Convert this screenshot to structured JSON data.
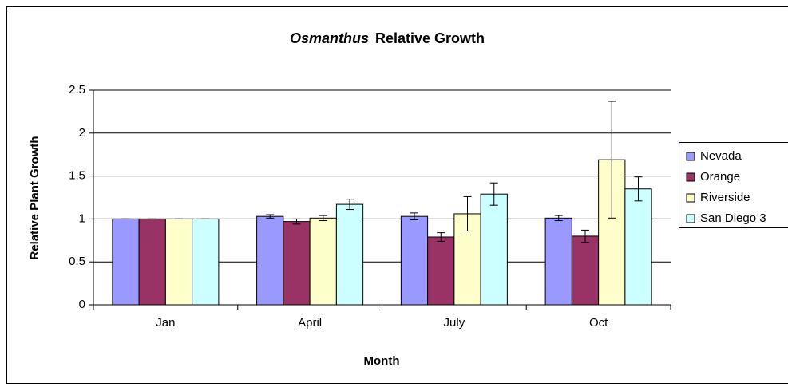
{
  "chart_data": {
    "type": "bar",
    "title_parts": [
      "Osmanthus",
      "Relative Growth"
    ],
    "x_label": "Month",
    "y_label": "Relative Plant Growth",
    "categories": [
      "Jan",
      "April",
      "July",
      "Oct"
    ],
    "series": [
      {
        "name": "Nevada",
        "color": "#9999ff",
        "values": [
          1,
          1.03,
          1.03,
          1.01
        ],
        "errors": [
          0,
          0.02,
          0.04,
          0.03
        ]
      },
      {
        "name": "Orange",
        "color": "#993366",
        "values": [
          1,
          0.97,
          0.79,
          0.8
        ],
        "errors": [
          0,
          0.03,
          0.05,
          0.07
        ]
      },
      {
        "name": "Riverside",
        "color": "#ffffcc",
        "values": [
          1,
          1.01,
          1.06,
          1.69
        ],
        "errors": [
          0,
          0.03,
          0.2,
          0.68
        ]
      },
      {
        "name": "San Diego 3",
        "color": "#ccffff",
        "values": [
          1,
          1.17,
          1.29,
          1.35
        ],
        "errors": [
          0,
          0.06,
          0.13,
          0.14
        ]
      }
    ],
    "ylim": [
      0,
      2.5
    ],
    "yticks": [
      0,
      0.5,
      1,
      1.5,
      2,
      2.5
    ],
    "grid": true,
    "legend": "right"
  }
}
